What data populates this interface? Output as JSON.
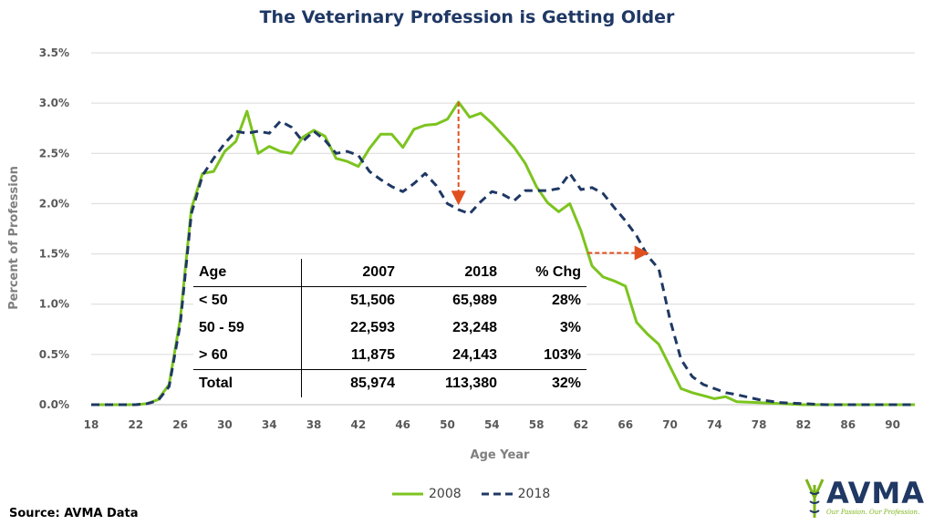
{
  "chart_data": {
    "type": "line",
    "title": "The Veterinary Profession is Getting Older",
    "xlabel": "Age Year",
    "ylabel": "Percent of Profession",
    "xlim": [
      18,
      92
    ],
    "ylim": [
      0,
      3.5
    ],
    "x_ticks": [
      "18",
      "22",
      "26",
      "30",
      "34",
      "38",
      "42",
      "46",
      "50",
      "54",
      "58",
      "62",
      "66",
      "70",
      "74",
      "78",
      "82",
      "86",
      "90"
    ],
    "y_ticks": [
      "0.0%",
      "0.5%",
      "1.0%",
      "1.5%",
      "2.0%",
      "2.5%",
      "3.0%",
      "3.5%"
    ],
    "grid": "horizontal",
    "legend_position": "bottom",
    "series": [
      {
        "name": "2008",
        "color": "#7cc41f",
        "style": "solid",
        "x": [
          18,
          20,
          22,
          23,
          24,
          25,
          26,
          27,
          28,
          29,
          30,
          31,
          32,
          33,
          34,
          35,
          36,
          37,
          38,
          39,
          40,
          41,
          42,
          43,
          44,
          45,
          46,
          47,
          48,
          49,
          50,
          51,
          52,
          53,
          54,
          55,
          56,
          57,
          58,
          59,
          60,
          61,
          62,
          63,
          64,
          65,
          66,
          67,
          68,
          69,
          70,
          71,
          72,
          73,
          74,
          75,
          76,
          78,
          80,
          82,
          84,
          86,
          88,
          90,
          92
        ],
        "y": [
          0,
          0,
          0,
          0.01,
          0.05,
          0.2,
          0.85,
          1.95,
          2.3,
          2.32,
          2.52,
          2.62,
          2.92,
          2.5,
          2.57,
          2.52,
          2.5,
          2.66,
          2.73,
          2.67,
          2.45,
          2.42,
          2.37,
          2.55,
          2.69,
          2.69,
          2.56,
          2.74,
          2.78,
          2.79,
          2.84,
          3.01,
          2.86,
          2.9,
          2.8,
          2.68,
          2.56,
          2.4,
          2.17,
          2.01,
          1.92,
          2.0,
          1.73,
          1.38,
          1.27,
          1.23,
          1.18,
          0.82,
          0.7,
          0.6,
          0.38,
          0.16,
          0.12,
          0.09,
          0.06,
          0.08,
          0.03,
          0.02,
          0.01,
          0,
          0,
          0,
          0,
          0,
          0
        ]
      },
      {
        "name": "2018",
        "color": "#1f3864",
        "style": "dashed",
        "x": [
          18,
          20,
          22,
          23,
          24,
          25,
          26,
          27,
          28,
          29,
          30,
          31,
          32,
          33,
          34,
          35,
          36,
          37,
          38,
          39,
          40,
          41,
          42,
          43,
          44,
          45,
          46,
          47,
          48,
          49,
          50,
          51,
          52,
          53,
          54,
          55,
          56,
          57,
          58,
          59,
          60,
          61,
          62,
          63,
          64,
          65,
          66,
          67,
          68,
          69,
          70,
          71,
          72,
          73,
          74,
          75,
          76,
          78,
          80,
          82,
          84,
          86,
          88,
          90,
          92
        ],
        "y": [
          0,
          0,
          0,
          0.01,
          0.04,
          0.18,
          0.8,
          1.9,
          2.28,
          2.45,
          2.6,
          2.72,
          2.7,
          2.72,
          2.7,
          2.82,
          2.76,
          2.62,
          2.72,
          2.63,
          2.5,
          2.52,
          2.48,
          2.32,
          2.24,
          2.17,
          2.12,
          2.2,
          2.3,
          2.18,
          2.0,
          1.94,
          1.9,
          2.02,
          2.12,
          2.09,
          2.03,
          2.13,
          2.13,
          2.13,
          2.15,
          2.3,
          2.14,
          2.16,
          2.1,
          1.96,
          1.83,
          1.68,
          1.48,
          1.35,
          0.85,
          0.45,
          0.28,
          0.2,
          0.16,
          0.12,
          0.1,
          0.05,
          0.02,
          0.01,
          0,
          0,
          0,
          0,
          0
        ]
      }
    ],
    "annotations": [
      {
        "type": "arrow",
        "color": "#e0501f",
        "from": [
          51,
          3.01
        ],
        "to": [
          51,
          2.02
        ]
      },
      {
        "type": "arrow",
        "color": "#e0501f",
        "from": [
          62.6,
          1.51
        ],
        "to": [
          67.8,
          1.51
        ]
      }
    ],
    "table": {
      "headers": [
        "Age",
        "2007",
        "2018",
        "% Chg"
      ],
      "rows": [
        [
          "< 50",
          "51,506",
          "65,989",
          "28%"
        ],
        [
          "50 - 59",
          "22,593",
          "23,248",
          "3%"
        ],
        [
          "> 60",
          "11,875",
          "24,143",
          "103%"
        ]
      ],
      "total": [
        "Total",
        "85,974",
        "113,380",
        "32%"
      ]
    }
  },
  "legend": {
    "item1": "2008",
    "item2": "2018"
  },
  "source": "Source: AVMA Data",
  "logo": {
    "text": "AVMA",
    "tagline": "Our Passion. Our Profession."
  }
}
